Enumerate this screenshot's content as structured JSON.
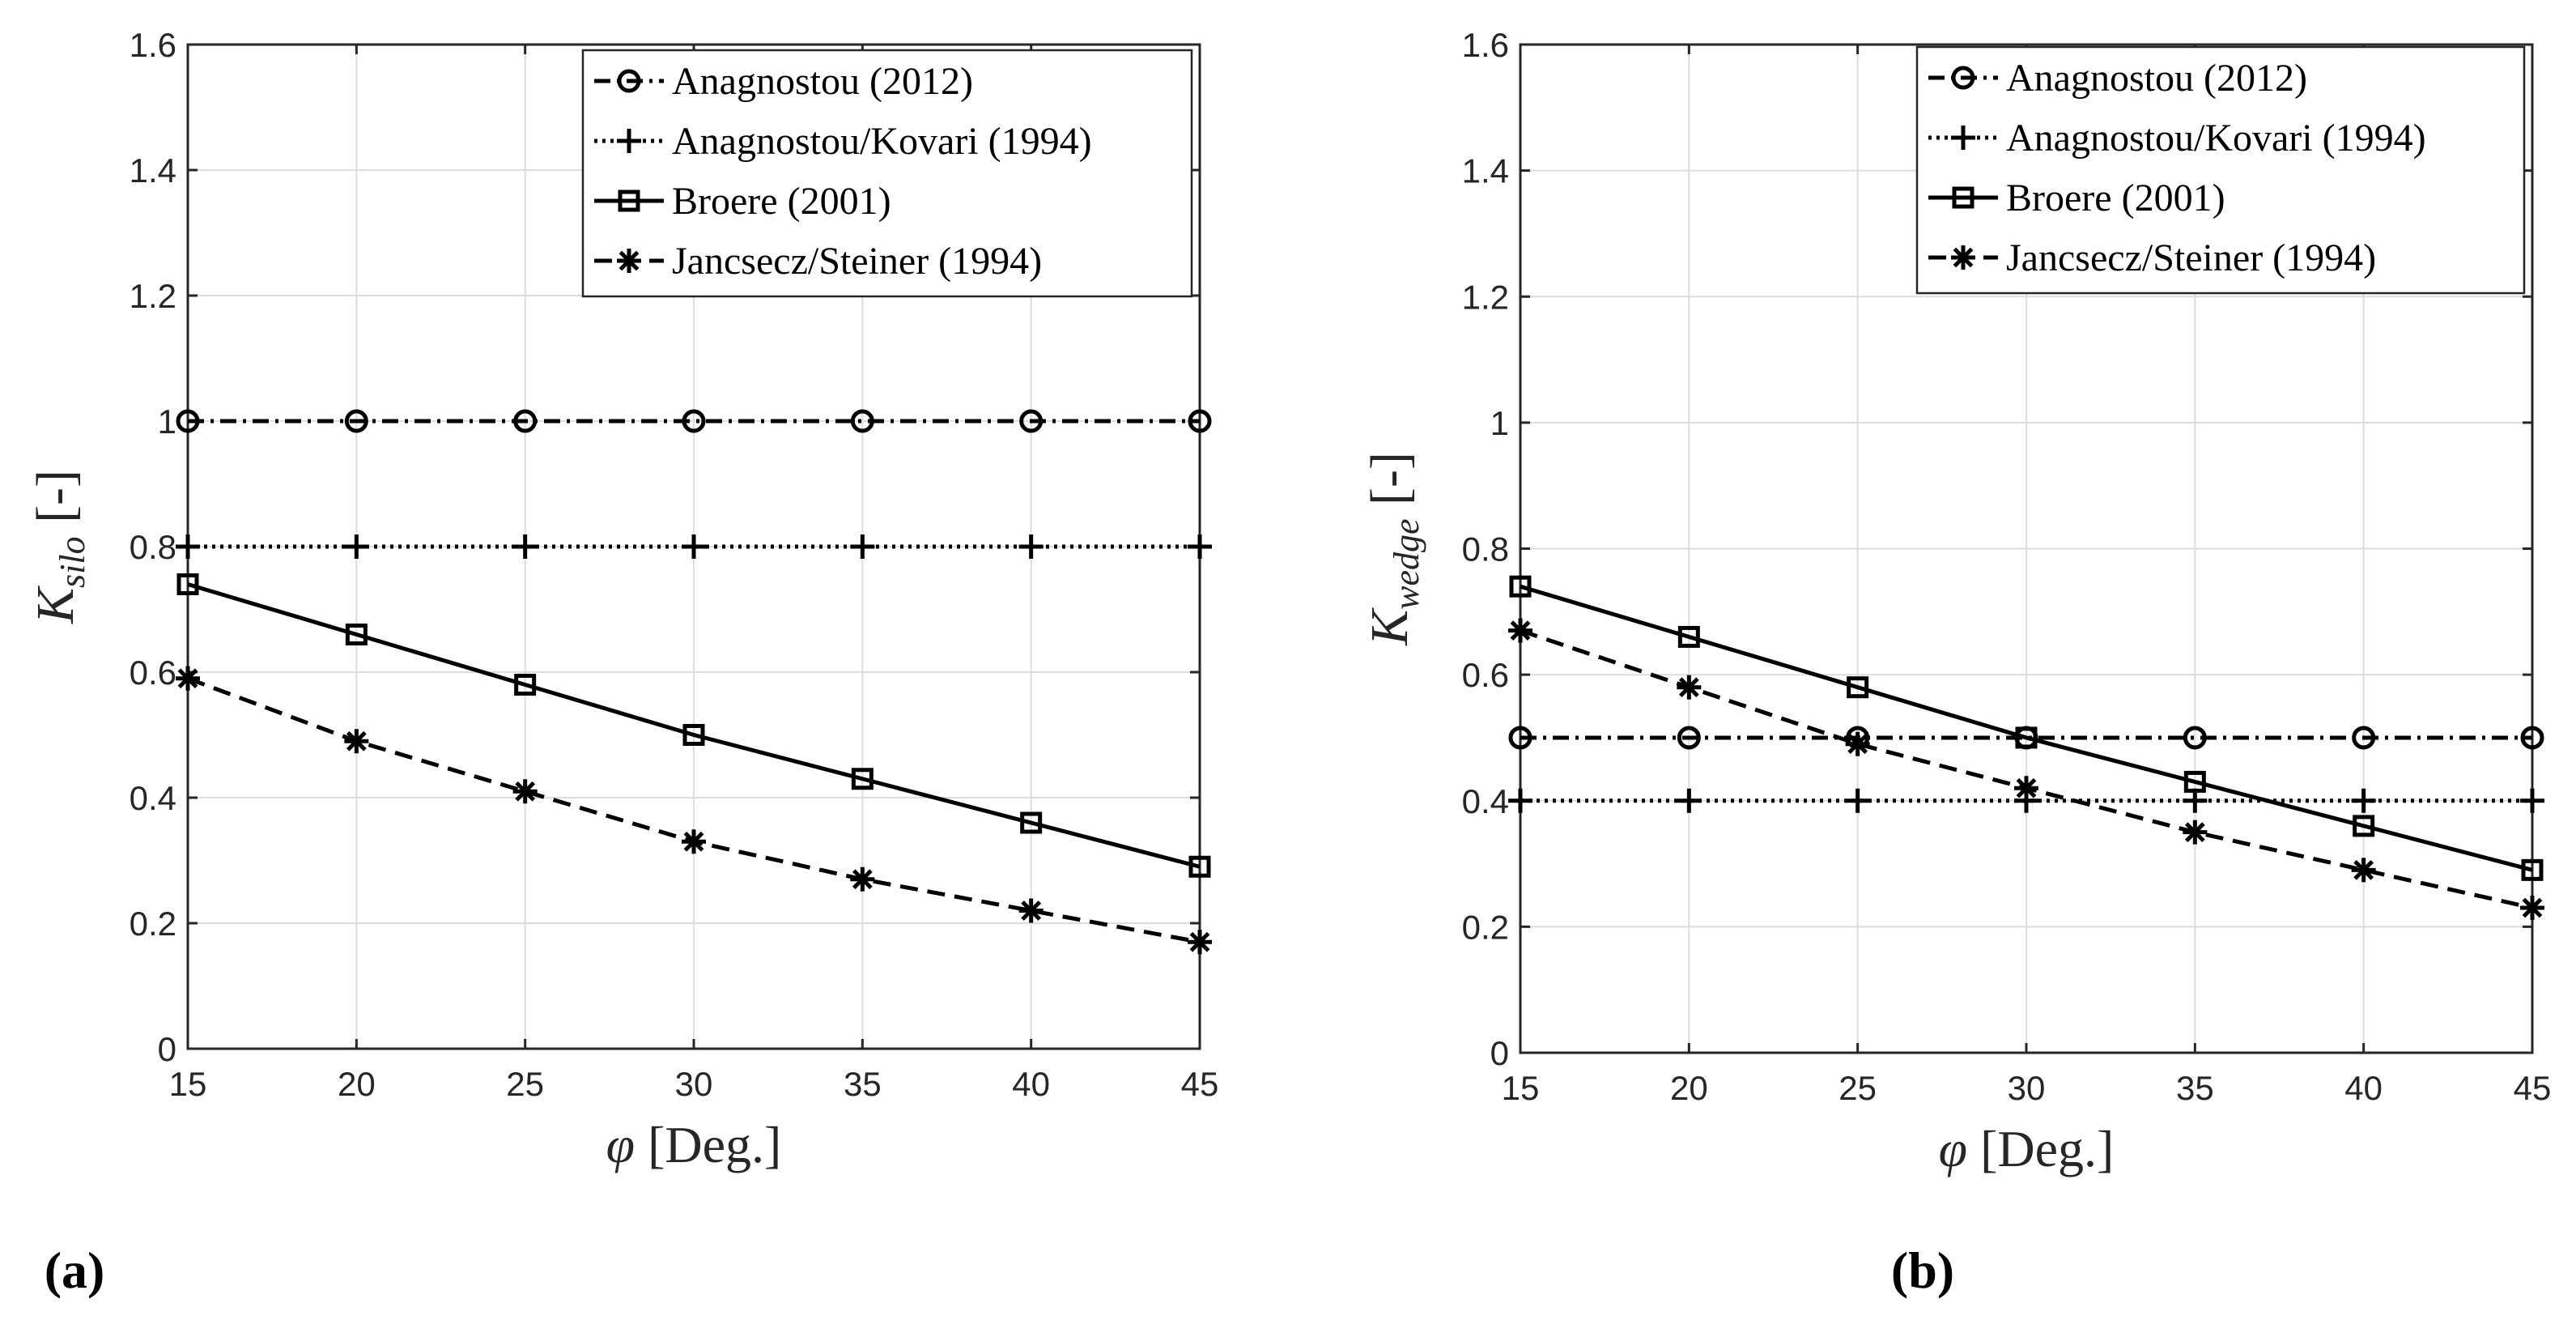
{
  "chart_data": [
    {
      "type": "line",
      "panel_label": "(a)",
      "ylabel": "K",
      "ylabel_sub": "silo",
      "ylabel_unit": "[-]",
      "xlabel_symbol": "φ",
      "xlabel_unit": "[Deg.]",
      "xlim": [
        15,
        45
      ],
      "ylim": [
        0,
        1.6
      ],
      "x_ticks": [
        15,
        20,
        25,
        30,
        35,
        40,
        45
      ],
      "y_ticks": [
        0,
        0.2,
        0.4,
        0.6,
        0.8,
        1,
        1.2,
        1.4,
        1.6
      ],
      "x_tick_labels": [
        "15",
        "20",
        "25",
        "30",
        "35",
        "40",
        "45"
      ],
      "y_tick_labels": [
        "0",
        "0.2",
        "0.4",
        "0.6",
        "0.8",
        "1",
        "1.2",
        "1.4",
        "1.6"
      ],
      "grid": true,
      "legend_position": "top-right",
      "x": [
        15,
        20,
        25,
        30,
        35,
        40,
        45
      ],
      "series": [
        {
          "name": "Anagnostou (2012)",
          "marker": "circle",
          "dash": "dashdot",
          "values": [
            1,
            1,
            1,
            1,
            1,
            1,
            1
          ]
        },
        {
          "name": "Anagnostou/Kovari (1994)",
          "marker": "plus",
          "dash": "dotted",
          "values": [
            0.8,
            0.8,
            0.8,
            0.8,
            0.8,
            0.8,
            0.8
          ]
        },
        {
          "name": "Broere (2001)",
          "marker": "square",
          "dash": "solid",
          "values": [
            0.74,
            0.66,
            0.58,
            0.5,
            0.43,
            0.36,
            0.29
          ]
        },
        {
          "name": "Jancsecz/Steiner (1994)",
          "marker": "asterisk",
          "dash": "dashed",
          "values": [
            0.59,
            0.49,
            0.41,
            0.33,
            0.27,
            0.22,
            0.17
          ]
        }
      ]
    },
    {
      "type": "line",
      "panel_label": "(b)",
      "ylabel": "K",
      "ylabel_sub": "wedge",
      "ylabel_unit": "[-]",
      "xlabel_symbol": "φ",
      "xlabel_unit": "[Deg.]",
      "xlim": [
        15,
        45
      ],
      "ylim": [
        0,
        1.6
      ],
      "x_ticks": [
        15,
        20,
        25,
        30,
        35,
        40,
        45
      ],
      "y_ticks": [
        0,
        0.2,
        0.4,
        0.6,
        0.8,
        1,
        1.2,
        1.4,
        1.6
      ],
      "x_tick_labels": [
        "15",
        "20",
        "25",
        "30",
        "35",
        "40",
        "45"
      ],
      "y_tick_labels": [
        "0",
        "0.2",
        "0.4",
        "0.6",
        "0.8",
        "1",
        "1.2",
        "1.4",
        "1.6"
      ],
      "grid": true,
      "legend_position": "top-right",
      "x": [
        15,
        20,
        25,
        30,
        35,
        40,
        45
      ],
      "series": [
        {
          "name": "Anagnostou (2012)",
          "marker": "circle",
          "dash": "dashdot",
          "values": [
            0.5,
            0.5,
            0.5,
            0.5,
            0.5,
            0.5,
            0.5
          ]
        },
        {
          "name": "Anagnostou/Kovari (1994)",
          "marker": "plus",
          "dash": "dotted",
          "values": [
            0.4,
            0.4,
            0.4,
            0.4,
            0.4,
            0.4,
            0.4
          ]
        },
        {
          "name": "Broere (2001)",
          "marker": "square",
          "dash": "solid",
          "values": [
            0.74,
            0.66,
            0.58,
            0.5,
            0.43,
            0.36,
            0.29
          ]
        },
        {
          "name": "Jancsecz/Steiner (1994)",
          "marker": "asterisk",
          "dash": "dashed",
          "values": [
            0.67,
            0.58,
            0.49,
            0.42,
            0.35,
            0.29,
            0.23
          ]
        }
      ]
    }
  ],
  "colors": {
    "line": "#000000",
    "grid": "#dcdcdc",
    "axis": "#262626"
  }
}
